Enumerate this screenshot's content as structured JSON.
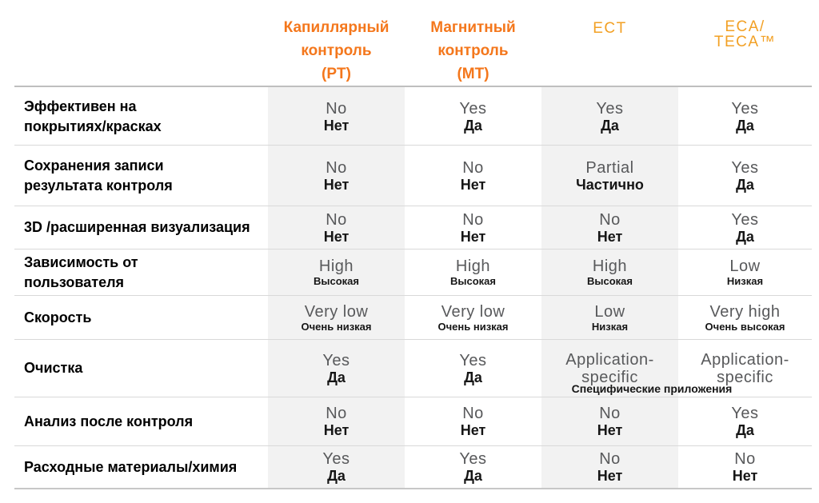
{
  "header": {
    "col0": {
      "line1": "Капиллярный",
      "line2": "контроль",
      "line3": "(PT)"
    },
    "col1": {
      "line1": "Магнитный",
      "line2": "контроль",
      "line3": "(MT)"
    },
    "col2": {
      "line1": "ECT"
    },
    "col3": {
      "line1": "ECA/",
      "line2": "TECA™"
    }
  },
  "rows": [
    {
      "label1": "Эффективен на",
      "label2": "покрытиях/красках",
      "cells": [
        {
          "en": "No",
          "ru": "Нет"
        },
        {
          "en": "Yes",
          "ru": "Да"
        },
        {
          "en": "Yes",
          "ru": "Да"
        },
        {
          "en": "Yes",
          "ru": "Да"
        }
      ]
    },
    {
      "label1": "Сохранения записи",
      "label2": "результата контроля",
      "cells": [
        {
          "en": "No",
          "ru": "Нет"
        },
        {
          "en": "No",
          "ru": "Нет"
        },
        {
          "en": "Partial",
          "ru": "Частично"
        },
        {
          "en": "Yes",
          "ru": "Да"
        }
      ]
    },
    {
      "label1": "3D /расширенная визуализация",
      "cells": [
        {
          "en": "No",
          "ru": "Нет"
        },
        {
          "en": "No",
          "ru": "Нет"
        },
        {
          "en": "No",
          "ru": "Нет"
        },
        {
          "en": "Yes",
          "ru": "Да"
        }
      ]
    },
    {
      "label1": "Зависимость от",
      "label2": "пользователя",
      "cells": [
        {
          "en": "High",
          "ru": "Высокая"
        },
        {
          "en": "High",
          "ru": "Высокая"
        },
        {
          "en": "High",
          "ru": "Высокая"
        },
        {
          "en": "Low",
          "ru": "Низкая"
        }
      ]
    },
    {
      "label1": "Скорость",
      "cells": [
        {
          "en": "Very low",
          "ru": "Очень низкая"
        },
        {
          "en": "Very low",
          "ru": "Очень низкая"
        },
        {
          "en": "Low",
          "ru": "Низкая"
        },
        {
          "en": "Very high",
          "ru": "Очень высокая"
        }
      ]
    },
    {
      "label1": "Очистка",
      "cells": [
        {
          "en": "Yes",
          "ru": "Да"
        },
        {
          "en": "Yes",
          "ru": "Да"
        },
        {
          "en": "Application-specific"
        },
        {
          "en": "Application-specific"
        }
      ],
      "shared_ru_caption": "Специфические приложения"
    },
    {
      "label1": "Анализ после контроля",
      "cells": [
        {
          "en": "No",
          "ru": "Нет"
        },
        {
          "en": "No",
          "ru": "Нет"
        },
        {
          "en": "No",
          "ru": "Нет"
        },
        {
          "en": "Yes",
          "ru": "Да"
        }
      ]
    },
    {
      "label1": "Расходные материалы/химия",
      "cells": [
        {
          "en": "Yes",
          "ru": "Да"
        },
        {
          "en": "Yes",
          "ru": "Да"
        },
        {
          "en": "No",
          "ru": "Нет"
        },
        {
          "en": "No",
          "ru": "Нет"
        }
      ]
    }
  ],
  "colors": {
    "accent_bold_orange": "#f4771c",
    "accent_light_orange": "#f2a024",
    "value_english_gray": "#58595b",
    "value_russian_dark": "#161616",
    "column_stripe": "#f2f2f2",
    "divider": "#d9d9d9"
  }
}
